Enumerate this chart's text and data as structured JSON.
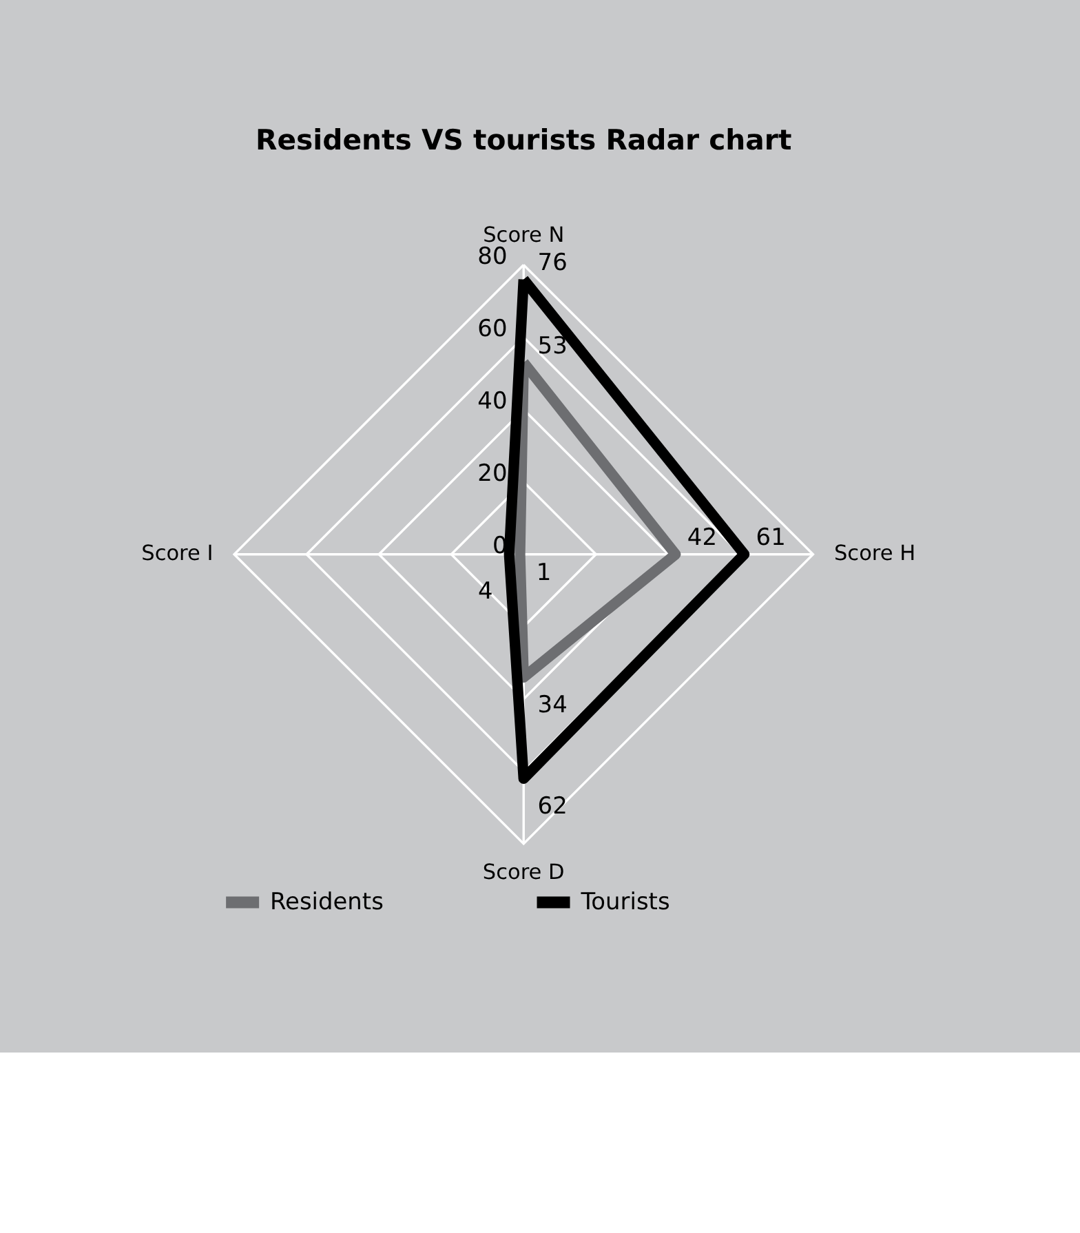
{
  "chart_data": {
    "type": "radar",
    "title": "Residents VS tourists Radar chart",
    "categories": [
      "Score N",
      "Score H",
      "Score D",
      "Score I"
    ],
    "series": [
      {
        "name": "Residents",
        "color": "#6d6e71",
        "values": [
          53,
          42,
          34,
          1
        ]
      },
      {
        "name": "Tourists",
        "color": "#000000",
        "values": [
          76,
          61,
          62,
          4
        ]
      }
    ],
    "ylim": [
      0,
      80
    ],
    "yticks": [
      0,
      20,
      40,
      60,
      80
    ],
    "grid": true,
    "data_labels": true,
    "legend": "bottom"
  }
}
